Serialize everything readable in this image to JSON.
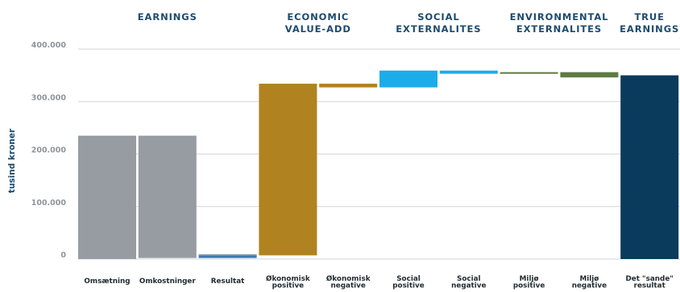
{
  "chart_data": {
    "type": "bar",
    "subtype": "waterfall",
    "ylabel": "tusind kroner",
    "ylim": [
      0,
      400000
    ],
    "y_ticks": [
      {
        "value": 0,
        "label": "0"
      },
      {
        "value": 100000,
        "label": "100.000"
      },
      {
        "value": 200000,
        "label": "200.000"
      },
      {
        "value": 300000,
        "label": "300.000"
      },
      {
        "value": 400000,
        "label": "400.000"
      }
    ],
    "grid": true,
    "groups": [
      {
        "title": [
          "EARNINGS"
        ],
        "from": 0,
        "to": 2
      },
      {
        "title": [
          "ECONOMIC",
          "VALUE-ADD"
        ],
        "from": 3,
        "to": 4
      },
      {
        "title": [
          "SOCIAL",
          "EXTERNALITES"
        ],
        "from": 5,
        "to": 6
      },
      {
        "title": [
          "ENVIRONMENTAL",
          "EXTERNALITES"
        ],
        "from": 7,
        "to": 8
      },
      {
        "title": [
          "TRUE",
          "EARNINGS"
        ],
        "from": 9,
        "to": 9
      }
    ],
    "bars": [
      {
        "label": [
          "Omsætning"
        ],
        "start": 0,
        "end": 235000,
        "color": "#969ca1"
      },
      {
        "label": [
          "Omkostninger"
        ],
        "start": 2000,
        "end": 235000,
        "color": "#969ca1"
      },
      {
        "label": [
          "Resultat"
        ],
        "start": 2000,
        "end": 9000,
        "color": "#3d7aad",
        "bands": [
          {
            "start": 7000,
            "end": 9000,
            "color": "#98a0a6"
          }
        ]
      },
      {
        "label": [
          "Økonomisk",
          "positive"
        ],
        "start": 7000,
        "end": 334000,
        "color": "#b08220"
      },
      {
        "label": [
          "Økonomisk",
          "negative"
        ],
        "start": 327000,
        "end": 334000,
        "color": "#b08220"
      },
      {
        "label": [
          "Social",
          "positive"
        ],
        "start": 327000,
        "end": 359000,
        "color": "#1badea"
      },
      {
        "label": [
          "Social",
          "negative"
        ],
        "start": 353000,
        "end": 359000,
        "color": "#1badea"
      },
      {
        "label": [
          "Miljø",
          "positive"
        ],
        "start": 353000,
        "end": 356000,
        "color": "#5e7b44"
      },
      {
        "label": [
          "Miljø",
          "negative"
        ],
        "start": 346000,
        "end": 356000,
        "color": "#5e7b44"
      },
      {
        "label": [
          "Det \"sande\"",
          "resultat"
        ],
        "start": 0,
        "end": 350000,
        "color": "#0a3a5c"
      }
    ]
  }
}
